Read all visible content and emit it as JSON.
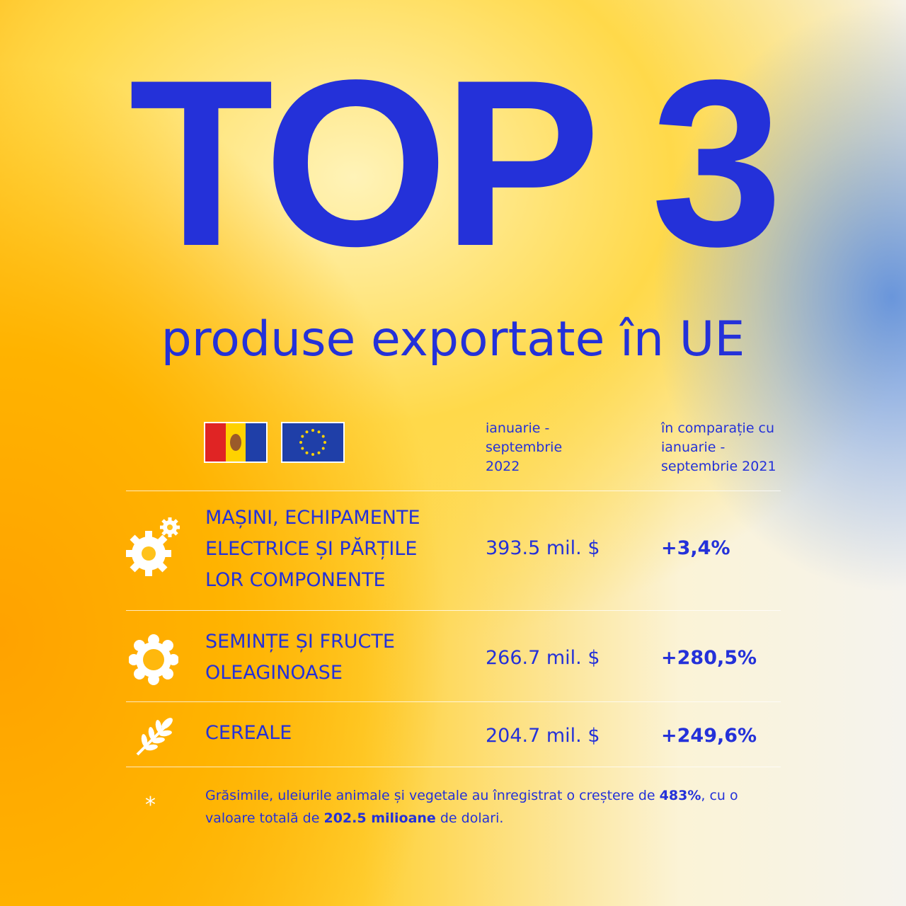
{
  "title": "TOP 3",
  "subtitle": "produse exportate în UE",
  "table": {
    "header": [
      "ianuarie - septembrie 2022",
      "în comparație cu ianuarie - septembrie 2021"
    ],
    "rows": [
      [
        "MAȘINI, ECHIPAMENTE ELECTRICE ȘI PĂRȚILE LOR COMPONENTE",
        "393.5 mil. $",
        "+3,4%"
      ],
      [
        "SEMINȚE ȘI FRUCTE OLEAGINOASE",
        "266.7 mil. $",
        "+280,5%"
      ],
      [
        "CEREALE",
        "204.7 mil. $",
        "+249,6%"
      ]
    ]
  },
  "footnote": {
    "marker": "*",
    "parts": [
      "Grăsimile, uleiurile animale și vegetale au înregistrat o creștere de ",
      "483%",
      ", cu o valoare totală de ",
      "202.5 milioane",
      " de dolari."
    ]
  }
}
